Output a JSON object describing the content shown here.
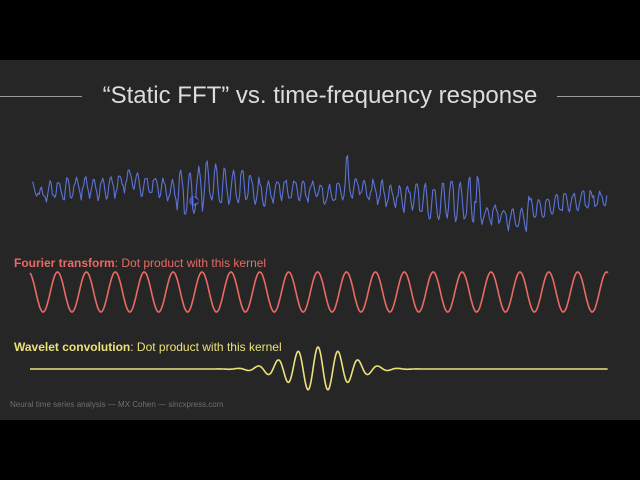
{
  "slide": {
    "title": "“Static FFT” vs. time-frequency response",
    "footer": "Neural time series analysis — MX Cohen — sincxpress.com"
  },
  "fourier": {
    "label_bold": "Fourier transform",
    "label_rest": ": Dot product with this kernel",
    "color": "#e96a63",
    "cycles": 20
  },
  "wavelet": {
    "label_bold": "Wavelet convolution",
    "label_rest": ": Dot product with this kernel",
    "color": "#ece27a"
  },
  "signal": {
    "color": "#5b74d6"
  },
  "colors": {
    "background": "#262627",
    "letterbox": "#000000",
    "title": "#dcdcdc"
  }
}
